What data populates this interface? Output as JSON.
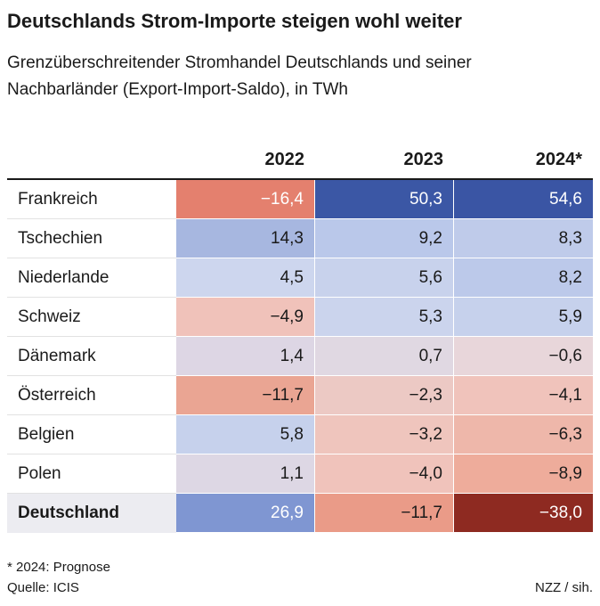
{
  "chart_data": {
    "type": "table",
    "title": "Deutschlands Strom-Importe steigen wohl weiter",
    "subtitle": "Grenzüberschreitender Stromhandel Deutschlands und seiner Nachbarländer (Export-Import-Saldo), in TWh",
    "columns": [
      "2022",
      "2023",
      "2024*"
    ],
    "rows": [
      {
        "name": "Frankreich",
        "values": [
          "−16,4",
          "50,3",
          "54,6"
        ],
        "colors": [
          "#e4806e",
          "#3b57a5",
          "#3a55a4"
        ],
        "text_colors": [
          "#ffffff",
          "#ffffff",
          "#ffffff"
        ]
      },
      {
        "name": "Tschechien",
        "values": [
          "14,3",
          "9,2",
          "8,3"
        ],
        "colors": [
          "#a7b7e0",
          "#bac8ea",
          "#bfcbea"
        ],
        "text_colors": [
          "#1a1a1a",
          "#1a1a1a",
          "#1a1a1a"
        ]
      },
      {
        "name": "Niederlande",
        "values": [
          "4,5",
          "5,6",
          "8,2"
        ],
        "colors": [
          "#cdd6ee",
          "#c8d2ec",
          "#bcc9ea"
        ],
        "text_colors": [
          "#1a1a1a",
          "#1a1a1a",
          "#1a1a1a"
        ]
      },
      {
        "name": "Schweiz",
        "values": [
          "−4,9",
          "5,3",
          "5,9"
        ],
        "colors": [
          "#f0c2ba",
          "#cbd4ed",
          "#c6d1ec"
        ],
        "text_colors": [
          "#1a1a1a",
          "#1a1a1a",
          "#1a1a1a"
        ]
      },
      {
        "name": "Dänemark",
        "values": [
          "1,4",
          "0,7",
          "−0,6"
        ],
        "colors": [
          "#ddd6e4",
          "#e0d8e2",
          "#e8d6da"
        ],
        "text_colors": [
          "#1a1a1a",
          "#1a1a1a",
          "#1a1a1a"
        ]
      },
      {
        "name": "Österreich",
        "values": [
          "−11,7",
          "−2,3",
          "−4,1"
        ],
        "colors": [
          "#eaa593",
          "#ecc9c4",
          "#f0c3bb"
        ],
        "text_colors": [
          "#1a1a1a",
          "#1a1a1a",
          "#1a1a1a"
        ]
      },
      {
        "name": "Belgien",
        "values": [
          "5,8",
          "−3,2",
          "−6,3"
        ],
        "colors": [
          "#c6d1ec",
          "#efc5bd",
          "#eeb7aa"
        ],
        "text_colors": [
          "#1a1a1a",
          "#1a1a1a",
          "#1a1a1a"
        ]
      },
      {
        "name": "Polen",
        "values": [
          "1,1",
          "−4,0",
          "−8,9"
        ],
        "colors": [
          "#ddd7e4",
          "#f0c3bb",
          "#eeac9b"
        ],
        "text_colors": [
          "#1a1a1a",
          "#1a1a1a",
          "#1a1a1a"
        ]
      }
    ],
    "total": {
      "name": "Deutschland",
      "values": [
        "26,9",
        "−11,7",
        "−38,0"
      ],
      "colors": [
        "#7f96d2",
        "#ea9b88",
        "#8e2a21"
      ],
      "text_colors": [
        "#ffffff",
        "#1a1a1a",
        "#ffffff"
      ]
    },
    "footnote": "* 2024: Prognose",
    "source": "Quelle: ICIS",
    "credit": "NZZ / sih."
  }
}
